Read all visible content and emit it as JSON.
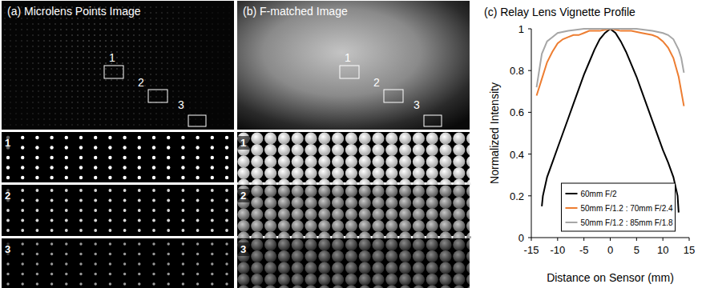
{
  "figure": {
    "panels": [
      {
        "title": "(a) Microlens Points Image",
        "regions": [
          "1",
          "2",
          "3"
        ]
      },
      {
        "title": "(b) F-matched Image",
        "regions": [
          "1",
          "2",
          "3"
        ]
      }
    ]
  },
  "chart_data": {
    "type": "line",
    "title": "(c) Relay Lens Vignette Profile",
    "x_label": "Distance on Sensor (mm)",
    "y_label": "Normalized Intensity",
    "xlim": [
      -15,
      15
    ],
    "xticks": [
      -15,
      -10,
      -5,
      0,
      5,
      10,
      15
    ],
    "ylim": [
      0,
      1
    ],
    "yticks": [
      0,
      0.2,
      0.4,
      0.6,
      0.8,
      1
    ],
    "grid": false,
    "legend": "bottom",
    "series": [
      {
        "name": "60mm F/2",
        "color": "#000000",
        "x": [
          -13,
          -12.8,
          -12,
          -11,
          -10,
          -9,
          -8,
          -7,
          -6,
          -5,
          -4,
          -3,
          -2,
          -1,
          0,
          1,
          2,
          3,
          4,
          5,
          6,
          7,
          8,
          9,
          10,
          11,
          12,
          12.8,
          13
        ],
        "values": [
          0.15,
          0.2,
          0.29,
          0.36,
          0.43,
          0.5,
          0.57,
          0.64,
          0.71,
          0.78,
          0.84,
          0.9,
          0.95,
          0.98,
          1.0,
          0.98,
          0.94,
          0.89,
          0.83,
          0.77,
          0.7,
          0.63,
          0.56,
          0.49,
          0.42,
          0.36,
          0.29,
          0.2,
          0.12
        ]
      },
      {
        "name": "50mm F/1.2 : 70mm F/2.4",
        "color": "#ed7d31",
        "x": [
          -14,
          -13,
          -12,
          -11,
          -10,
          -9,
          -8,
          -7,
          -6,
          -5,
          -4,
          -2,
          0,
          2,
          4,
          6,
          8,
          9,
          10,
          11,
          12,
          13,
          14
        ],
        "values": [
          0.68,
          0.76,
          0.84,
          0.89,
          0.93,
          0.95,
          0.96,
          0.97,
          0.97,
          0.98,
          0.99,
          0.99,
          1.0,
          0.99,
          0.99,
          0.98,
          0.97,
          0.96,
          0.94,
          0.91,
          0.86,
          0.77,
          0.63
        ]
      },
      {
        "name": "50mm F/1.2 : 85mm F/1.8",
        "color": "#a6a6a6",
        "x": [
          -14,
          -13.5,
          -13,
          -12,
          -11,
          -10,
          -8,
          -5,
          0,
          5,
          8,
          10,
          11,
          12,
          13,
          13.5,
          14
        ],
        "values": [
          0.72,
          0.8,
          0.88,
          0.94,
          0.96,
          0.98,
          0.99,
          1.0,
          1.0,
          1.0,
          0.99,
          0.98,
          0.97,
          0.95,
          0.9,
          0.86,
          0.79
        ]
      }
    ]
  }
}
